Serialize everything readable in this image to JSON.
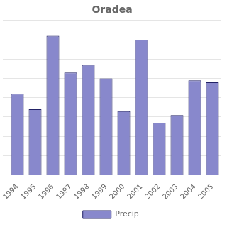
{
  "chart_data": {
    "type": "bar",
    "title": "Oradea",
    "categories": [
      "1994",
      "1995",
      "1996",
      "1997",
      "1998",
      "1999",
      "2000",
      "2001",
      "2002",
      "2003",
      "2004",
      "2005"
    ],
    "series": [
      {
        "name": "Precip.",
        "color": "#8888cc",
        "values": [
          420,
          340,
          720,
          530,
          570,
          500,
          330,
          700,
          270,
          310,
          490,
          480
        ]
      }
    ],
    "ylim": [
      0,
      800
    ],
    "yticks": [
      0,
      100,
      200,
      300,
      400,
      500,
      600,
      700,
      800
    ],
    "grid": true,
    "legend": "bottom",
    "tick_labels": "x"
  }
}
